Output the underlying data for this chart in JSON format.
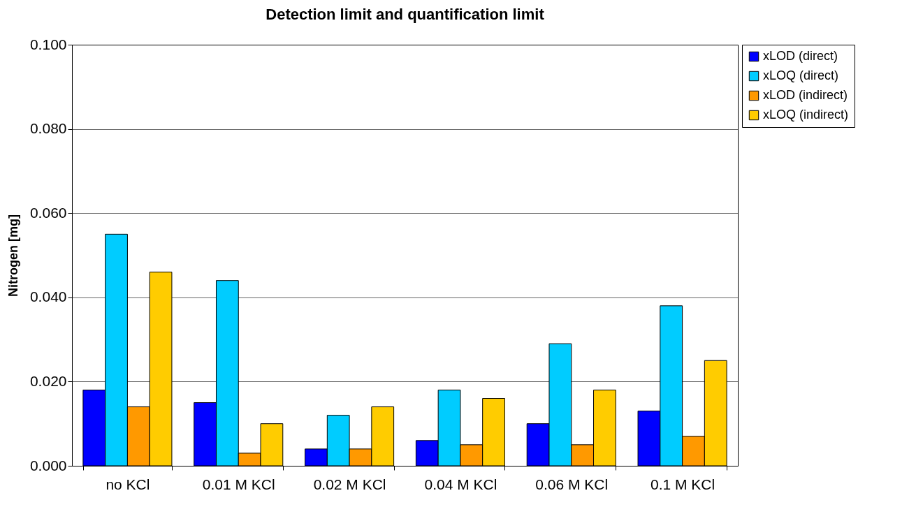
{
  "chart_data": {
    "type": "bar",
    "title": "Detection limit and quantification limit",
    "ylabel": "Nitrogen [mg]",
    "categories": [
      "no KCl",
      "0.01 M KCl",
      "0.02 M KCl",
      "0.04 M KCl",
      "0.06 M KCl",
      "0.1 M KCl"
    ],
    "series": [
      {
        "name": "xLOD (direct)",
        "color": "#0000ff",
        "values": [
          0.018,
          0.015,
          0.004,
          0.006,
          0.01,
          0.013
        ]
      },
      {
        "name": "xLOQ (direct)",
        "color": "#00ccff",
        "values": [
          0.055,
          0.044,
          0.012,
          0.018,
          0.029,
          0.038
        ]
      },
      {
        "name": "xLOD (indirect)",
        "color": "#ff9900",
        "values": [
          0.014,
          0.003,
          0.004,
          0.005,
          0.005,
          0.007
        ]
      },
      {
        "name": "xLOQ (indirect)",
        "color": "#ffcc00",
        "values": [
          0.046,
          0.01,
          0.014,
          0.016,
          0.018,
          0.025
        ]
      }
    ],
    "ylim": [
      0,
      0.1
    ],
    "yticks": [
      {
        "value": 0,
        "label": "0.000"
      },
      {
        "value": 0.02,
        "label": "0.020"
      },
      {
        "value": 0.04,
        "label": "0.040"
      },
      {
        "value": 0.06,
        "label": "0.060"
      },
      {
        "value": 0.08,
        "label": "0.080"
      },
      {
        "value": 0.1,
        "label": "0.100"
      }
    ],
    "grid": "y",
    "legend": "right"
  }
}
